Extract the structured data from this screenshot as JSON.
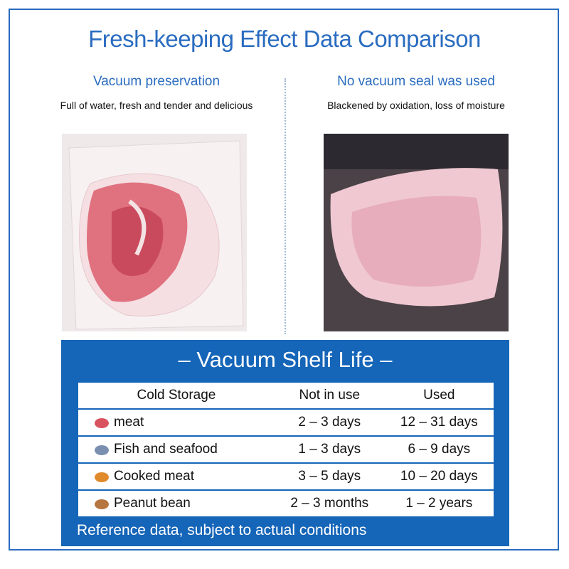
{
  "header": {
    "title": "Fresh-keeping Effect Data Comparison"
  },
  "comparison": [
    {
      "heading": "Vacuum preservation",
      "caption": "Full of water, fresh and tender and delicious"
    },
    {
      "heading": "No vacuum seal was used",
      "caption": "Blackened by oxidation, loss of moisture"
    }
  ],
  "shelf_life": {
    "title": "– Vacuum Shelf Life –",
    "table": {
      "header": [
        "Cold Storage",
        "Not in use",
        "Used"
      ],
      "rows": [
        [
          "meat",
          "2 – 3 days",
          "12 – 31 days"
        ],
        [
          "Fish and seafood",
          "1 – 3 days",
          "6 – 9 days"
        ],
        [
          "Cooked meat",
          "3 – 5 days",
          "10 – 20 days"
        ],
        [
          "Peanut bean",
          "2 – 3 months",
          "1 – 2 years"
        ]
      ]
    },
    "note": "Reference data, subject to actual conditions"
  }
}
